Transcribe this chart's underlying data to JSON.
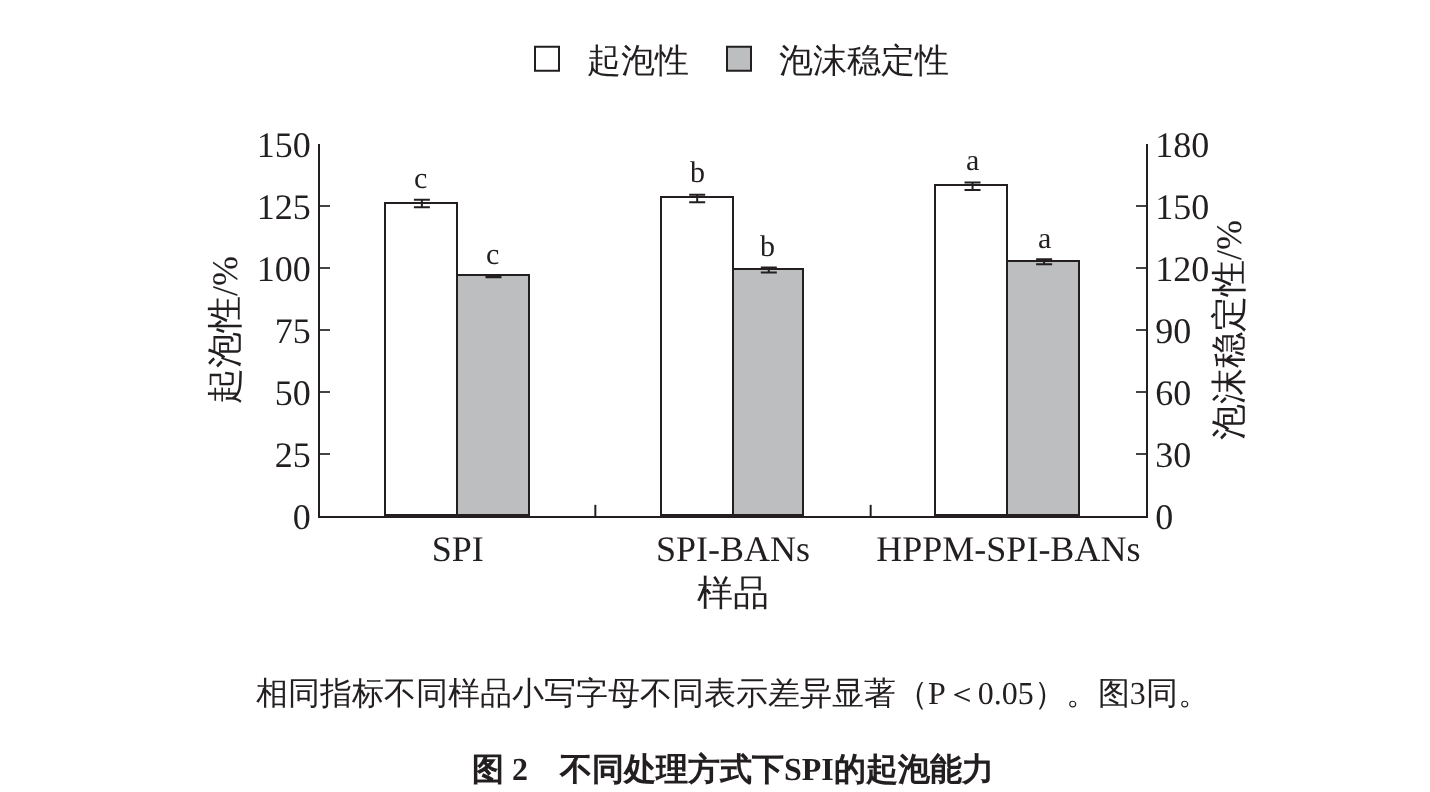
{
  "chart_data": {
    "type": "bar",
    "title": "图 2　不同处理方式下SPI的起泡能力",
    "xlabel": "样品",
    "ylabel": "起泡性/%",
    "y2label": "泡沫稳定性/%",
    "categories": [
      "SPI",
      "SPI-BANs",
      "HPPM-SPI-BANs"
    ],
    "series": [
      {
        "name": "起泡性",
        "color": "#ffffff",
        "values": [
          126,
          128,
          133
        ],
        "errors": [
          1.5,
          1.5,
          1.5
        ],
        "value_labels": [
          "c",
          "b",
          "a"
        ]
      },
      {
        "name": "泡沫稳定性",
        "color": "#bcbec0",
        "axis": "y2",
        "values": [
          116,
          119,
          123
        ],
        "errors": [
          0.5,
          1.2,
          1.2
        ],
        "value_labels": [
          "c",
          "b",
          "a"
        ]
      }
    ],
    "ylim": [
      0,
      150
    ],
    "yticks": [
      0,
      25,
      50,
      75,
      100,
      125,
      150
    ],
    "y2lim": [
      0,
      180
    ],
    "y2ticks": [
      0,
      30,
      60,
      90,
      120,
      150,
      180
    ],
    "annotations": [
      "相同指标不同样品小写字母不同表示差异显著（P＜0.05）。图3同。"
    ],
    "legend": "top",
    "grid": false
  }
}
